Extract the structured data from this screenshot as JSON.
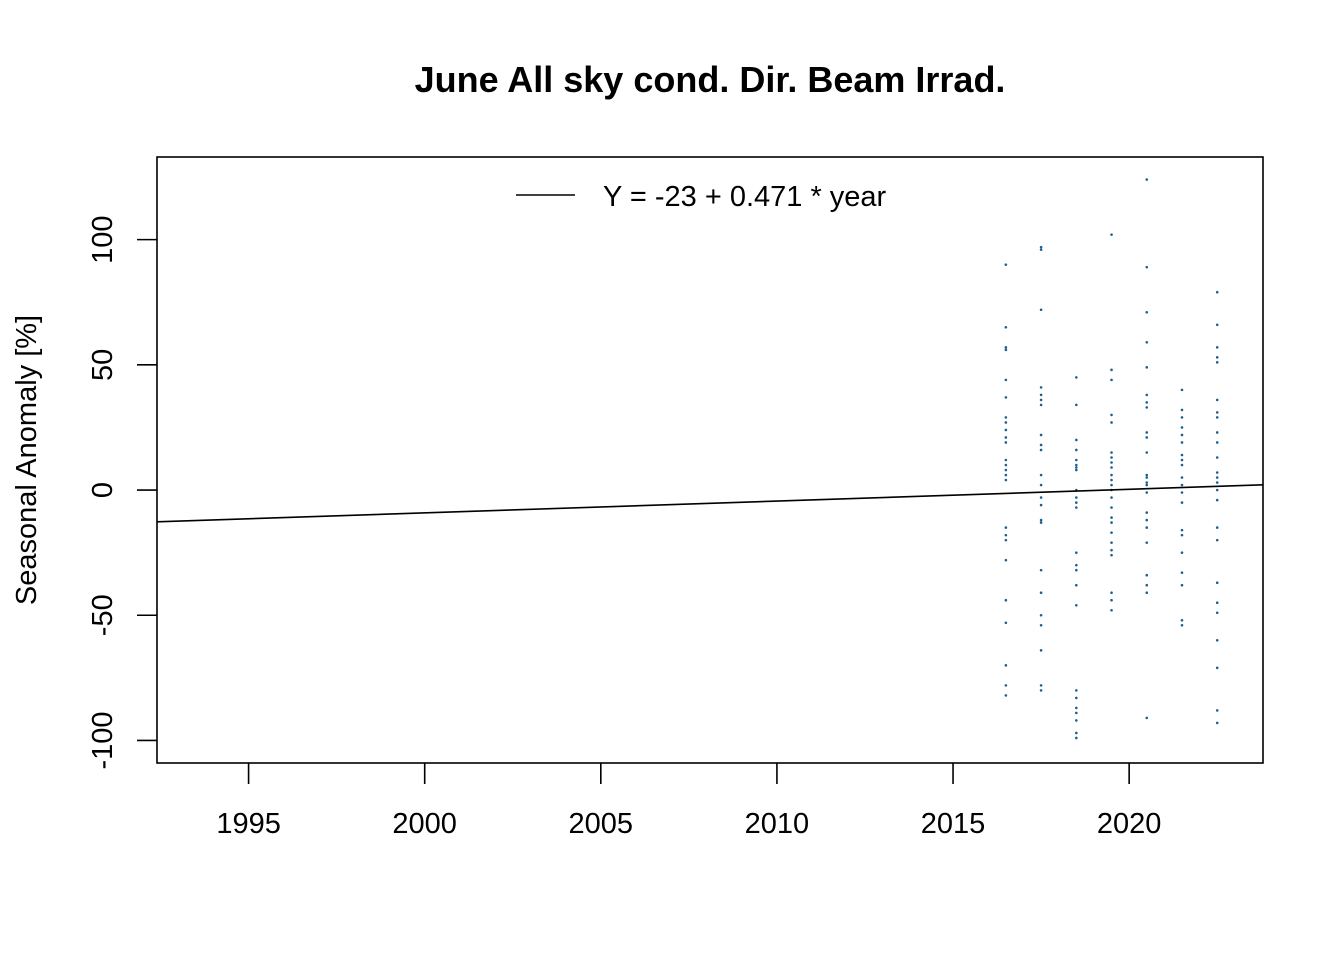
{
  "chart_data": {
    "type": "scatter",
    "title": "June All sky cond. Dir. Beam Irrad.",
    "xlabel": "",
    "ylabel": "Seasonal Anomaly [%]",
    "xlim": [
      1992.4,
      2023.8
    ],
    "ylim": [
      -109,
      133
    ],
    "x_ticks": [
      1995,
      2000,
      2005,
      2010,
      2015,
      2020
    ],
    "y_ticks": [
      -100,
      -50,
      0,
      50,
      100
    ],
    "grid": false,
    "legend": {
      "position": "top-center",
      "entries": [
        "Y = -23 + 0.471 * year"
      ]
    },
    "point_color": "#1f5f8b",
    "trend_line": {
      "label": "Y = -23 + 0.471 * year",
      "start": [
        1992.4,
        -12.7
      ],
      "end": [
        2023.8,
        2.1
      ]
    },
    "series": [
      {
        "x": 2016.5,
        "values": [
          90,
          65,
          57,
          56,
          44,
          37,
          29,
          27,
          24,
          21,
          19,
          12,
          10,
          8,
          6,
          4,
          -15,
          -18,
          -20,
          -28,
          -44,
          -53,
          -70,
          -78,
          -82
        ]
      },
      {
        "x": 2017.5,
        "values": [
          97,
          96,
          72,
          41,
          38,
          36,
          34,
          22,
          18,
          16,
          6,
          2,
          -3,
          -6,
          -12,
          -13,
          -32,
          -41,
          -50,
          -54,
          -64,
          -78,
          -80
        ]
      },
      {
        "x": 2018.5,
        "values": [
          45,
          34,
          20,
          16,
          12,
          10,
          9,
          8,
          0,
          -3,
          -5,
          -7,
          -25,
          -30,
          -32,
          -38,
          -46,
          -80,
          -83,
          -87,
          -89,
          -92,
          -97,
          -99
        ]
      },
      {
        "x": 2019.5,
        "values": [
          102,
          48,
          44,
          30,
          27,
          15,
          13,
          11,
          9,
          6,
          4,
          2,
          0,
          -3,
          -7,
          -11,
          -13,
          -17,
          -21,
          -24,
          -26,
          -41,
          -44,
          -48
        ]
      },
      {
        "x": 2020.5,
        "values": [
          124,
          89,
          71,
          59,
          49,
          38,
          35,
          33,
          23,
          21,
          15,
          6,
          5,
          3,
          2,
          -1,
          -9,
          -12,
          -15,
          -21,
          -34,
          -38,
          -41,
          -91
        ]
      },
      {
        "x": 2021.5,
        "values": [
          40,
          32,
          29,
          25,
          22,
          19,
          14,
          12,
          10,
          5,
          2,
          -1,
          -5,
          -16,
          -18,
          -25,
          -33,
          -38,
          -52,
          -54
        ]
      },
      {
        "x": 2022.5,
        "values": [
          79,
          66,
          57,
          53,
          51,
          36,
          31,
          29,
          23,
          19,
          13,
          7,
          5,
          3,
          0,
          -4,
          -15,
          -20,
          -37,
          -45,
          -49,
          -60,
          -71,
          -88,
          -93
        ]
      }
    ]
  }
}
